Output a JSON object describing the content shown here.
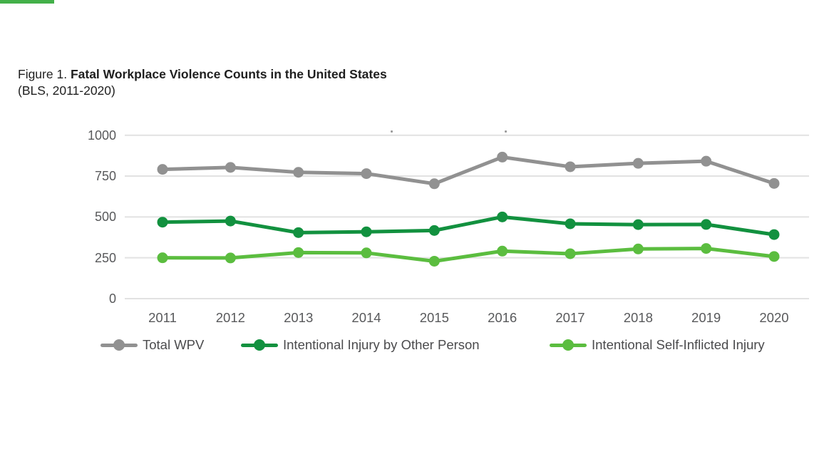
{
  "header": {
    "figure_label": "Figure 1.",
    "title": "Fatal Workplace Violence Counts in the United States",
    "subtitle": "(BLS, 2011-2020)"
  },
  "chart_data": {
    "type": "line",
    "title": "Fatal Workplace Violence Counts in the United States (BLS, 2011-2020)",
    "xlabel": "",
    "ylabel": "",
    "x": [
      "2011",
      "2012",
      "2013",
      "2014",
      "2015",
      "2016",
      "2017",
      "2018",
      "2019",
      "2020"
    ],
    "yticks": [
      0,
      250,
      500,
      750,
      1000
    ],
    "ylim": [
      0,
      1000
    ],
    "grid": "horizontal",
    "legend_position": "bottom",
    "series": [
      {
        "name": "Total WPV",
        "color": "#919191",
        "values": [
          791,
          803,
          773,
          765,
          703,
          866,
          807,
          828,
          841,
          705
        ]
      },
      {
        "name": "Intentional Injury by Other Person",
        "color": "#12913f",
        "values": [
          468,
          475,
          404,
          409,
          417,
          500,
          458,
          453,
          454,
          392
        ]
      },
      {
        "name": "Intentional Self-Inflicted Injury",
        "color": "#5bbd3f",
        "values": [
          250,
          249,
          282,
          280,
          229,
          291,
          275,
          304,
          307,
          258
        ]
      }
    ]
  },
  "colors": {
    "accent_bar": "#43b049",
    "gridline": "#e2e2e2",
    "tick_text": "#58595b",
    "legend_text": "#4b4b4d",
    "title_text": "#1f1f1f"
  }
}
